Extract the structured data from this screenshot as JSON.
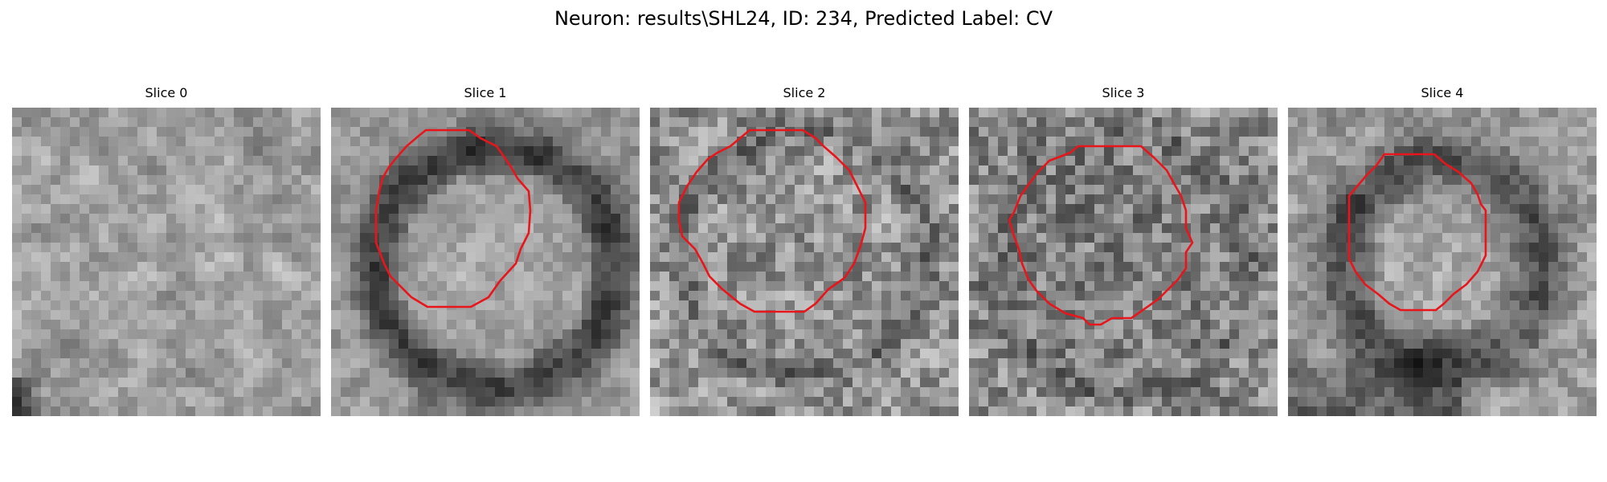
{
  "figure": {
    "title": "Neuron: results\\SHL24, ID: 234, Predicted Label: CV",
    "contour_color": "#e8151b",
    "colormap": "grayscale"
  },
  "slices": [
    {
      "title": "Slice 0",
      "has_contour": false
    },
    {
      "title": "Slice 1",
      "has_contour": true
    },
    {
      "title": "Slice 2",
      "has_contour": true
    },
    {
      "title": "Slice 3",
      "has_contour": true
    },
    {
      "title": "Slice 4",
      "has_contour": true
    }
  ]
}
